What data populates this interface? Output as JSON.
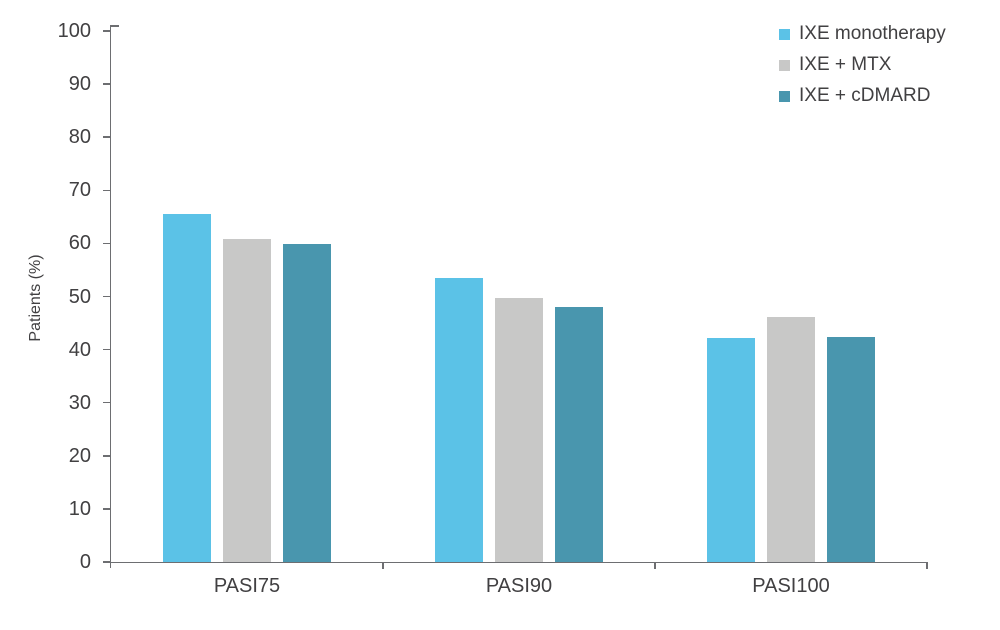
{
  "colors": {
    "background": "#FFFFFF",
    "axis": "#6D6E71",
    "text": "#414042"
  },
  "chart_data": {
    "type": "bar",
    "title": "",
    "xlabel": "",
    "ylabel": "Patients (%)",
    "ylim": [
      0,
      100
    ],
    "yticks": [
      0,
      10,
      20,
      30,
      40,
      50,
      60,
      70,
      80,
      90,
      100
    ],
    "grid": false,
    "legend_position": "top-right",
    "categories": [
      "PASI75",
      "PASI90",
      "PASI100"
    ],
    "series": [
      {
        "name": "IXE monotherapy",
        "color": "#5BC2E7",
        "values": [
          65.5,
          53.5,
          42.1
        ]
      },
      {
        "name": "IXE + MTX",
        "color": "#C8C8C7",
        "values": [
          60.8,
          49.7,
          46.1
        ]
      },
      {
        "name": "IXE + cDMARD",
        "color": "#4996AE",
        "values": [
          59.8,
          48.0,
          42.4
        ]
      }
    ]
  }
}
